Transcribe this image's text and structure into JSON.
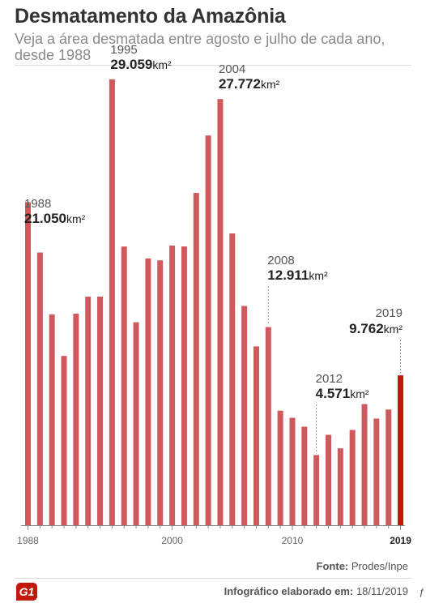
{
  "header": {
    "title": "Desmatamento da Amazônia",
    "subtitle": "Veja a área desmatada entre agosto e julho de cada ano, desde 1988"
  },
  "footer": {
    "source_label": "Fonte:",
    "source_value": "Prodes/Inpe",
    "credit_label": "Infográfico elaborado em:",
    "credit_value": "18/11/2019",
    "logo_text": "G1",
    "corner_mark": "ƒ"
  },
  "colors": {
    "bar": "#d0595e",
    "bar_highlight": "#c4170c",
    "axis": "#888888",
    "leader": "#999999"
  },
  "chart_data": {
    "type": "bar",
    "title": "Desmatamento da Amazônia",
    "xlabel": "",
    "ylabel": "",
    "unit": "km²",
    "ylim": [
      0,
      30000
    ],
    "grid": false,
    "x": [
      1988,
      1989,
      1990,
      1991,
      1992,
      1993,
      1994,
      1995,
      1996,
      1997,
      1998,
      1999,
      2000,
      2001,
      2002,
      2003,
      2004,
      2005,
      2006,
      2007,
      2008,
      2009,
      2010,
      2011,
      2012,
      2013,
      2014,
      2015,
      2016,
      2017,
      2018,
      2019
    ],
    "values": [
      21050,
      17770,
      13730,
      11030,
      13786,
      14896,
      14896,
      29059,
      18161,
      13227,
      17383,
      17259,
      18226,
      18165,
      21651,
      25396,
      27772,
      19014,
      14286,
      11651,
      12911,
      7464,
      7000,
      6418,
      4571,
      5891,
      5012,
      6207,
      7893,
      6947,
      7536,
      9762
    ],
    "highlight_year": 2019,
    "x_tick_labels": [
      "1988",
      "2000",
      "2010",
      "2019"
    ],
    "annotations": [
      {
        "year": 1988,
        "label_year": "1988",
        "label_value": "21.050",
        "unit": "km²"
      },
      {
        "year": 1995,
        "label_year": "1995",
        "label_value": "29.059",
        "unit": "km²"
      },
      {
        "year": 2004,
        "label_year": "2004",
        "label_value": "27.772",
        "unit": "km²"
      },
      {
        "year": 2008,
        "label_year": "2008",
        "label_value": "12.911",
        "unit": "km²"
      },
      {
        "year": 2012,
        "label_year": "2012",
        "label_value": "4.571",
        "unit": "km²"
      },
      {
        "year": 2019,
        "label_year": "2019",
        "label_value": "9.762",
        "unit": "km²"
      }
    ]
  }
}
